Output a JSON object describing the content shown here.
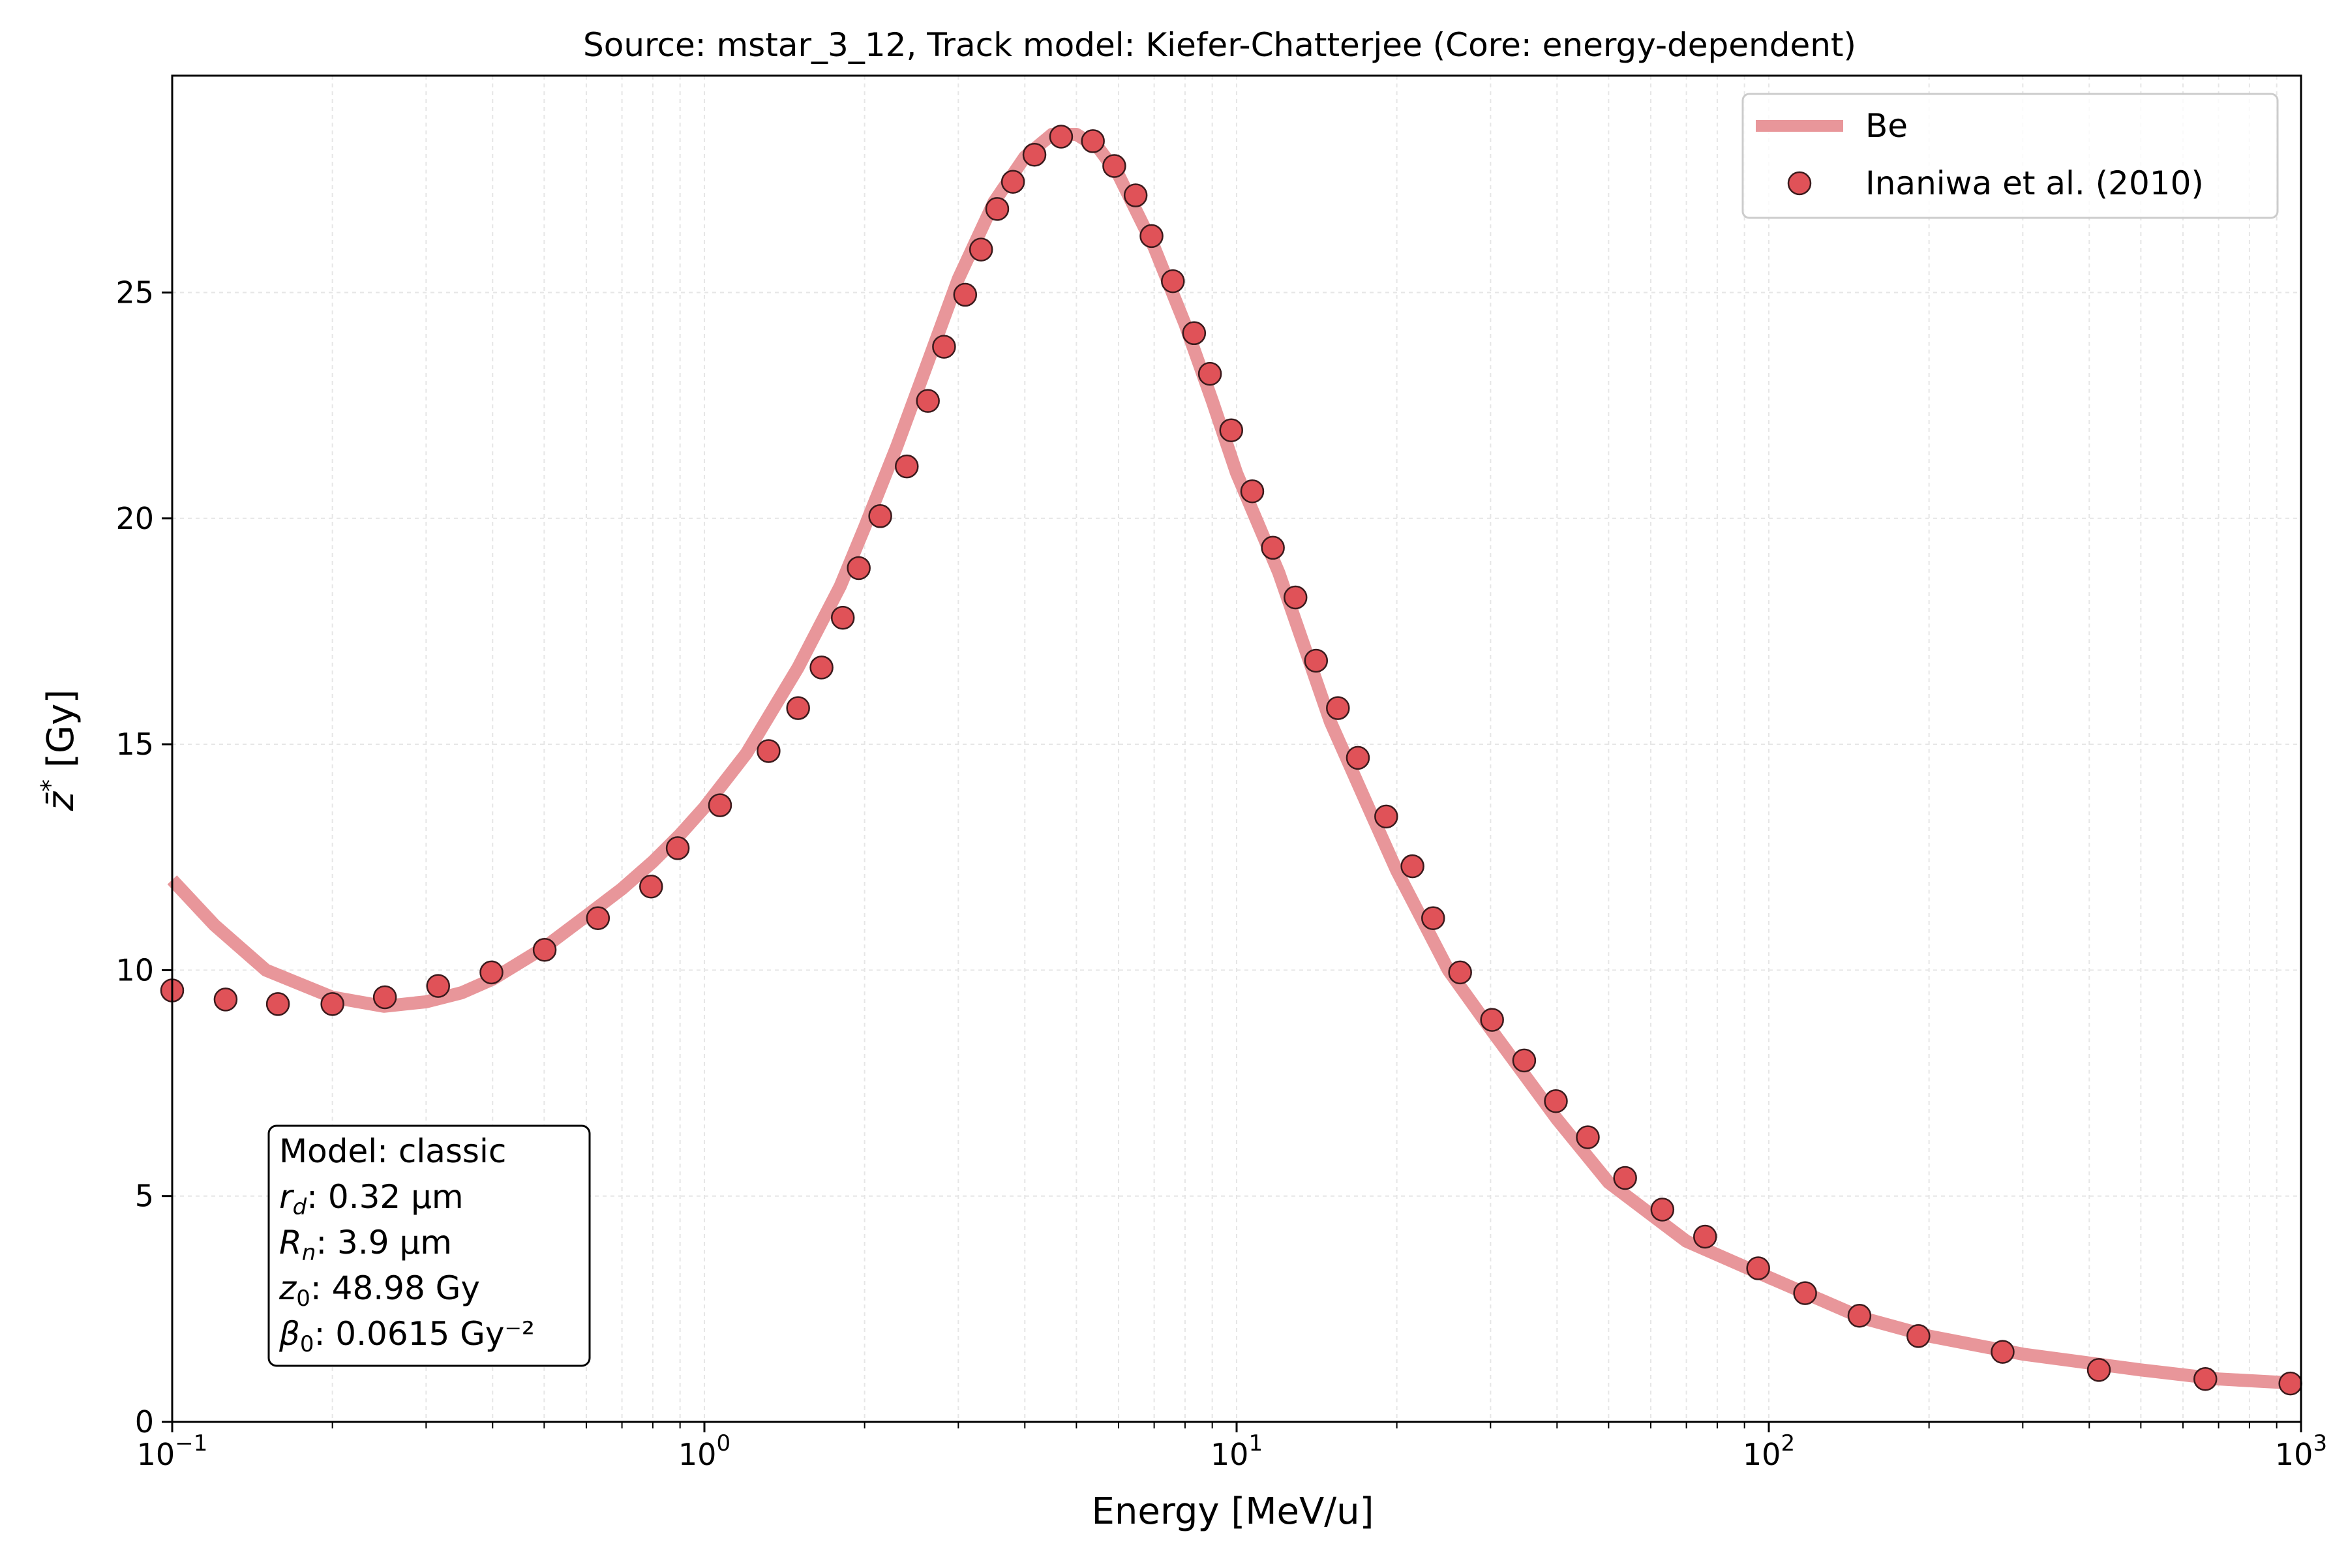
{
  "chart_data": {
    "type": "line",
    "title": "Source: mstar_3_12, Track model: Kiefer-Chatterjee (Core: energy-dependent)",
    "xlabel": "Energy [MeV/u]",
    "ylabel_main": "z̄",
    "ylabel_sup": "*",
    "ylabel_unit": " [Gy]",
    "xscale": "log",
    "xlim": [
      0.1,
      1000
    ],
    "ylim": [
      0,
      29.8
    ],
    "grid": true,
    "legend_position": "top-right",
    "x_ticks": [
      {
        "value": 0.1,
        "base": "10",
        "exp": "−1"
      },
      {
        "value": 1,
        "base": "10",
        "exp": "0"
      },
      {
        "value": 10,
        "base": "10",
        "exp": "1"
      },
      {
        "value": 100,
        "base": "10",
        "exp": "2"
      },
      {
        "value": 1000,
        "base": "10",
        "exp": "3"
      }
    ],
    "y_ticks": [
      0,
      5,
      10,
      15,
      20,
      25
    ],
    "colors": {
      "line": "#e8969a",
      "marker_fill": "#e05258",
      "marker_edge": "#3a1a1c"
    },
    "series": [
      {
        "name": "Be",
        "style": "line",
        "x": [
          0.1,
          0.12,
          0.15,
          0.2,
          0.25,
          0.3,
          0.35,
          0.4,
          0.5,
          0.6,
          0.7,
          0.8,
          0.9,
          1.0,
          1.2,
          1.5,
          1.8,
          2.0,
          2.3,
          2.6,
          3.0,
          3.5,
          4.0,
          4.5,
          5.0,
          5.5,
          6.0,
          7.0,
          8.0,
          9.0,
          10,
          12,
          15,
          18,
          20,
          25,
          30,
          40,
          50,
          70,
          100,
          150,
          200,
          300,
          500,
          700,
          1000
        ],
        "y": [
          12.0,
          11.0,
          10.0,
          9.4,
          9.2,
          9.3,
          9.5,
          9.8,
          10.5,
          11.2,
          11.8,
          12.4,
          13.0,
          13.6,
          14.8,
          16.7,
          18.5,
          19.8,
          21.6,
          23.3,
          25.3,
          27.0,
          28.0,
          28.5,
          28.5,
          28.2,
          27.6,
          26.0,
          24.3,
          22.6,
          21.0,
          18.8,
          15.5,
          13.4,
          12.2,
          10.0,
          8.7,
          6.7,
          5.3,
          4.0,
          3.2,
          2.3,
          1.9,
          1.5,
          1.15,
          0.95,
          0.85
        ]
      },
      {
        "name": "Inaniwa et al. (2010)",
        "style": "marker",
        "x": [
          0.1,
          0.126,
          0.158,
          0.2,
          0.251,
          0.316,
          0.398,
          0.501,
          0.631,
          0.794,
          0.891,
          1.07,
          1.32,
          1.5,
          1.66,
          1.82,
          1.95,
          2.14,
          2.4,
          2.63,
          2.82,
          3.09,
          3.31,
          3.55,
          3.8,
          4.17,
          4.68,
          5.37,
          5.89,
          6.46,
          6.92,
          7.59,
          8.32,
          8.91,
          9.77,
          10.7,
          11.7,
          12.9,
          14.1,
          15.5,
          16.9,
          19.1,
          21.4,
          23.4,
          26.3,
          30.2,
          34.7,
          39.8,
          45.7,
          53.7,
          63.1,
          75.9,
          95.5,
          117,
          148,
          191,
          275,
          417,
          661,
          955
        ],
        "y": [
          9.55,
          9.35,
          9.25,
          9.25,
          9.4,
          9.65,
          9.95,
          10.45,
          11.15,
          11.85,
          12.7,
          13.65,
          14.85,
          15.8,
          16.7,
          17.8,
          18.9,
          20.05,
          21.15,
          22.6,
          23.8,
          24.95,
          25.95,
          26.85,
          27.45,
          28.05,
          28.45,
          28.35,
          27.8,
          27.15,
          26.25,
          25.25,
          24.1,
          23.2,
          21.95,
          20.6,
          19.35,
          18.25,
          16.85,
          15.8,
          14.7,
          13.4,
          12.3,
          11.15,
          9.95,
          8.9,
          8.0,
          7.1,
          6.3,
          5.4,
          4.7,
          4.1,
          3.4,
          2.85,
          2.35,
          1.9,
          1.55,
          1.15,
          0.95,
          0.85
        ]
      }
    ],
    "legend": {
      "line_label": "Be",
      "marker_label": "Inaniwa et al. (2010)"
    },
    "info_box": {
      "line1": "Model: classic",
      "rd_sym": "r",
      "rd_sub": "d",
      "rd_val": ": 0.32 µm",
      "rn_sym": "R",
      "rn_sub": "n",
      "rn_val": ": 3.9 µm",
      "z0_sym": "z",
      "z0_sub": "0",
      "z0_val": ": 48.98 Gy",
      "b0_sym": "β",
      "b0_sub": "0",
      "b0_val": ": 0.0615 Gy⁻²"
    }
  }
}
